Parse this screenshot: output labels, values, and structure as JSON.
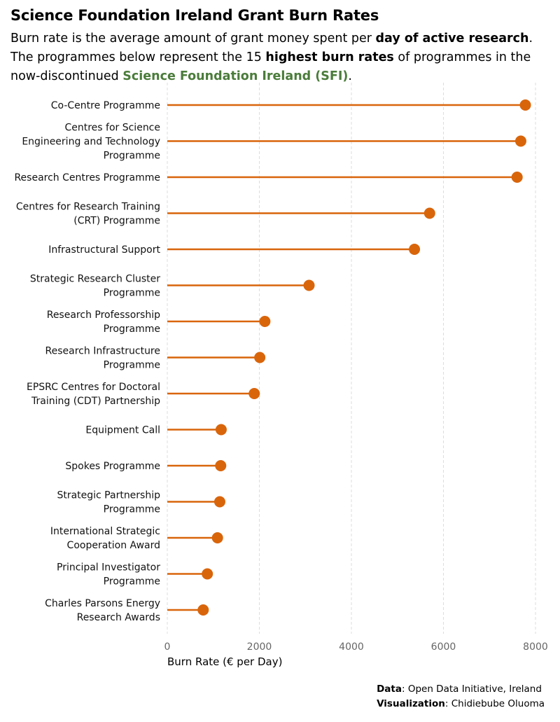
{
  "header": {
    "title": "Science Foundation Ireland Grant Burn Rates",
    "subtitle_1": "Burn rate is the average amount of grant money spent per ",
    "subtitle_bold_1": "day of active research",
    "subtitle_2": ". The programmes below represent the 15 ",
    "subtitle_bold_2": "highest burn rates",
    "subtitle_3": " of programmes in the now-discontinued ",
    "subtitle_sfi": "Science Foundation Ireland (SFI)",
    "subtitle_4": "."
  },
  "colors": {
    "accent": "#d9650b",
    "sfi_green": "#4a7c3a",
    "grid": "#dddddd"
  },
  "chart_data": {
    "type": "lollipop",
    "title": "Science Foundation Ireland Grant Burn Rates",
    "xlabel": "Burn Rate (€ per Day)",
    "ylabel": "",
    "xlim": [
      0,
      8000
    ],
    "xticks": [
      0,
      2000,
      4000,
      6000,
      8000
    ],
    "grid": "vertical dashed",
    "categories": [
      "Co-Centre Programme",
      "Centres for Science\nEngineering and Technology\nProgramme",
      "Research Centres Programme",
      "Centres for Research Training\n(CRT) Programme",
      "Infrastructural Support",
      "Strategic Research Cluster\nProgramme",
      "Research Professorship\nProgramme",
      "Research Infrastructure\nProgramme",
      "EPSRC Centres for Doctoral\nTraining (CDT) Partnership",
      "Equipment Call",
      "Spokes Programme",
      "Strategic Partnership\nProgramme",
      "International Strategic\nCooperation Award",
      "Principal Investigator\nProgramme",
      "Charles Parsons Energy\nResearch Awards"
    ],
    "values": [
      7780,
      7680,
      7600,
      5700,
      5370,
      3080,
      2120,
      2010,
      1890,
      1170,
      1160,
      1140,
      1090,
      870,
      780
    ]
  },
  "caption": {
    "data_label": "Data",
    "data_value": ": Open Data Initiative, Ireland",
    "viz_label": "Visualization",
    "viz_value": ": Chidiebube Oluoma"
  }
}
